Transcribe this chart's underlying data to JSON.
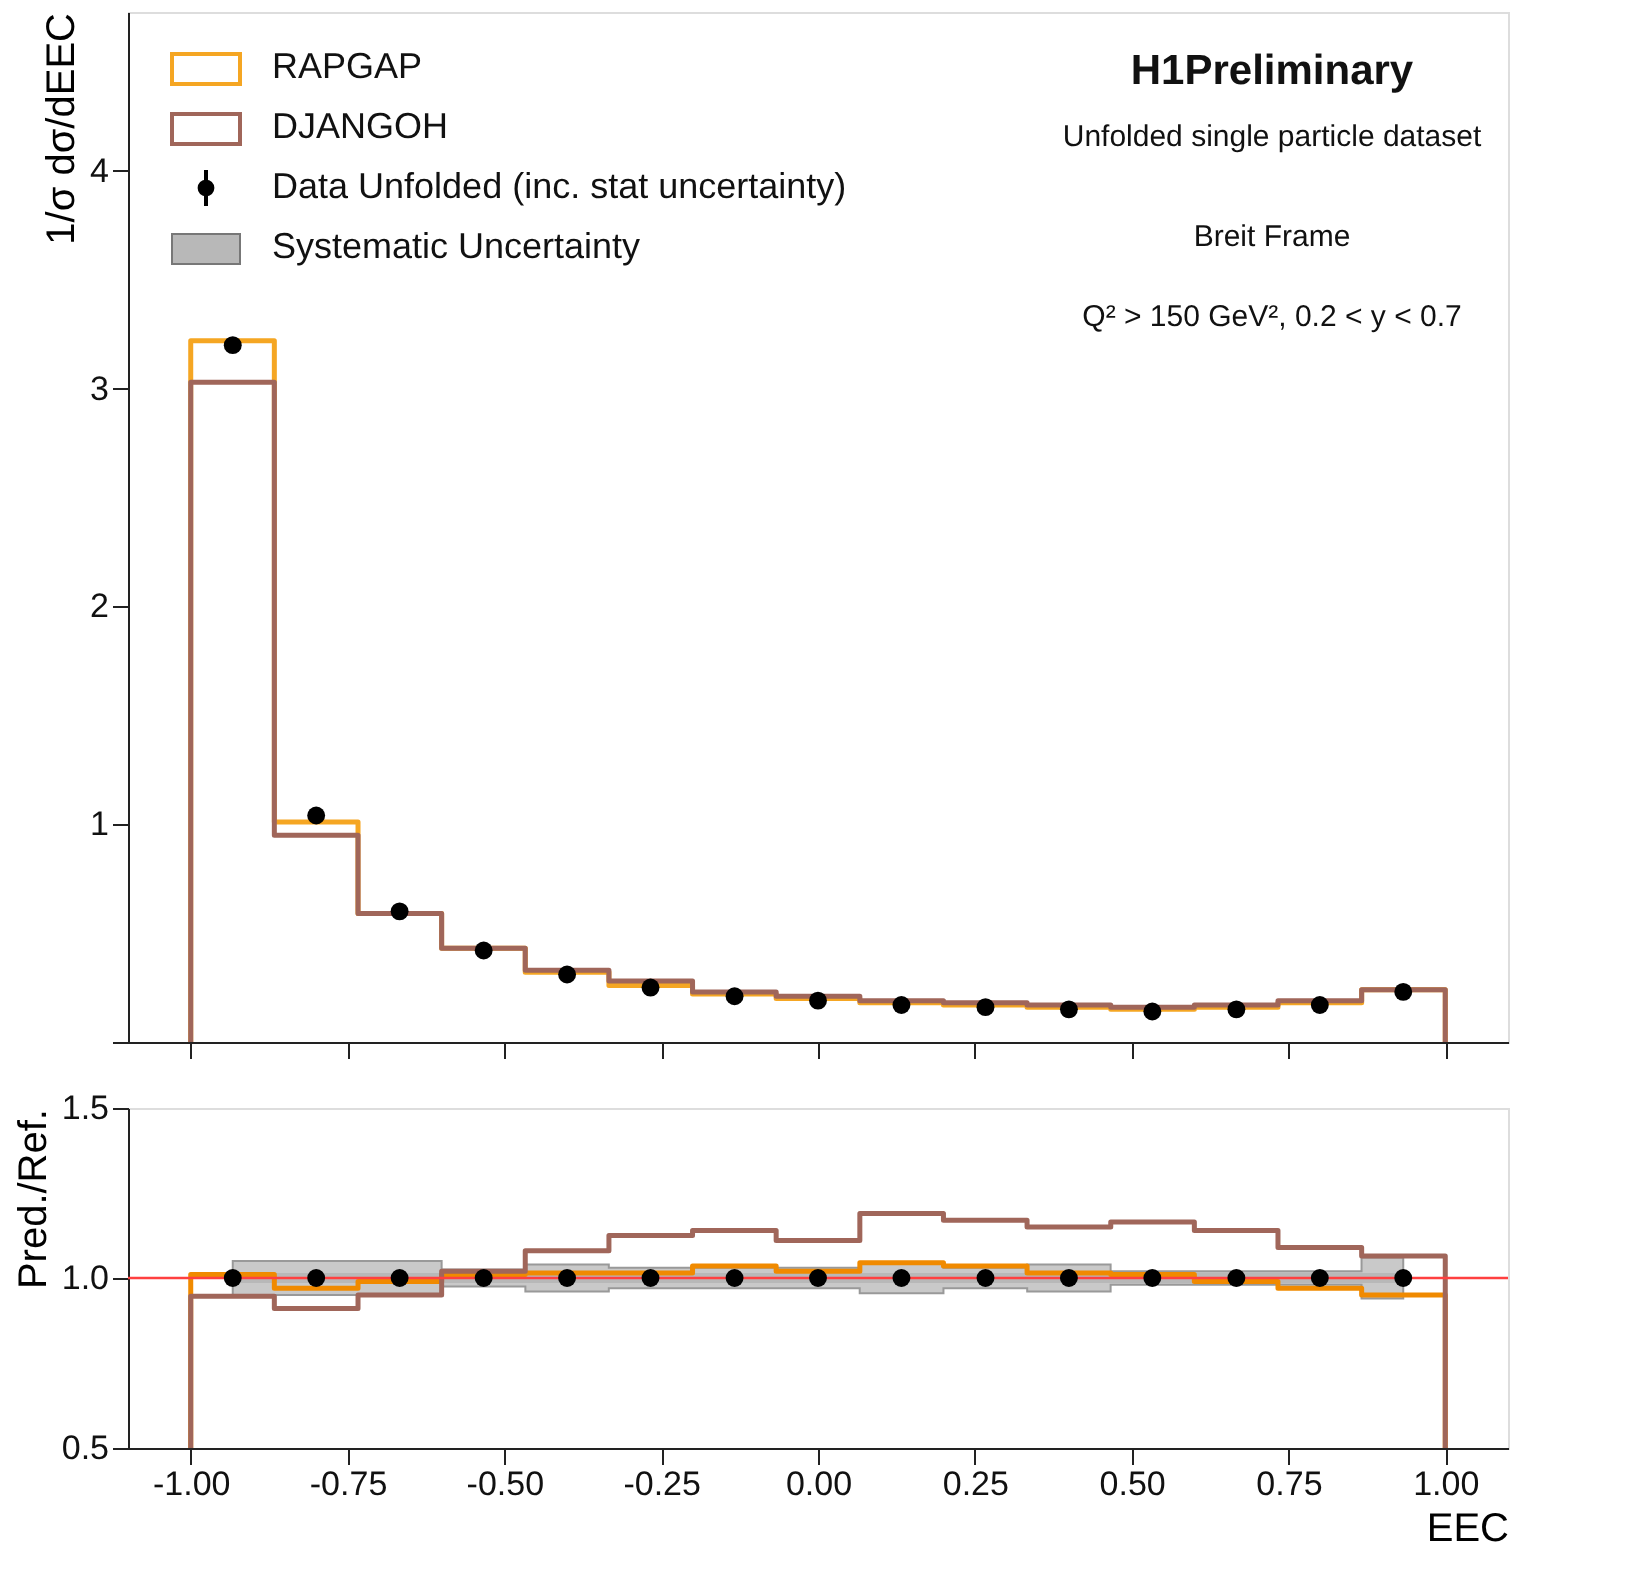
{
  "chart_data": [
    {
      "type": "histogram",
      "ylabel": "1/σ dσ/dEEC",
      "bins": [
        -1.0,
        -0.8667,
        -0.7333,
        -0.6,
        -0.4667,
        -0.3333,
        -0.2,
        -0.0667,
        0.0667,
        0.2,
        0.3333,
        0.4667,
        0.6,
        0.7333,
        0.8667,
        1.0
      ],
      "xlim": [
        -1.1,
        1.1
      ],
      "xticks": [
        {
          "value": -1,
          "label": null
        },
        {
          "value": -0.75,
          "label": null
        },
        {
          "value": -0.5,
          "label": null
        },
        {
          "value": -0.25,
          "label": null
        },
        {
          "value": 0,
          "label": null
        },
        {
          "value": 0.25,
          "label": null
        },
        {
          "value": 0.5,
          "label": null
        },
        {
          "value": 0.75,
          "label": null
        },
        {
          "value": 1,
          "label": null
        }
      ],
      "ylim": [
        0,
        4.73
      ],
      "yticks": [
        {
          "value": 0,
          "label": null
        },
        1,
        2,
        3,
        4
      ],
      "tick_labels": "y",
      "legend": "top left",
      "annotations": [
        "H1Preliminary",
        "Unfolded single particle dataset",
        "Breit Frame",
        "Q² > 150 GeV², 0.2 < y < 0.7"
      ],
      "series": [
        {
          "name": "RAPGAP",
          "color": "#f5a623",
          "values": [
            3.22,
            1.01,
            0.59,
            0.43,
            0.32,
            0.26,
            0.22,
            0.2,
            0.18,
            0.17,
            0.16,
            0.15,
            0.16,
            0.18,
            0.24
          ]
        },
        {
          "name": "DJANGOH",
          "color": "#a0665a",
          "values": [
            3.03,
            0.95,
            0.59,
            0.43,
            0.33,
            0.28,
            0.23,
            0.21,
            0.19,
            0.18,
            0.17,
            0.16,
            0.17,
            0.19,
            0.24
          ]
        },
        {
          "name": "Data Unfolded (inc. stat uncertainty)",
          "type": "scatter",
          "color": "#000000",
          "x": [
            -0.933,
            -0.8,
            -0.667,
            -0.533,
            -0.4,
            -0.267,
            -0.133,
            0,
            0.133,
            0.267,
            0.4,
            0.533,
            0.667,
            0.8,
            0.933
          ],
          "values": [
            3.2,
            1.04,
            0.6,
            0.42,
            0.31,
            0.25,
            0.21,
            0.19,
            0.17,
            0.16,
            0.15,
            0.14,
            0.15,
            0.17,
            0.23
          ]
        }
      ]
    },
    {
      "type": "histogram",
      "ylabel": "Pred./Ref.",
      "xlabel": "EEC",
      "bins": [
        -1.0,
        -0.8667,
        -0.7333,
        -0.6,
        -0.4667,
        -0.3333,
        -0.2,
        -0.0667,
        0.0667,
        0.2,
        0.3333,
        0.4667,
        0.6,
        0.7333,
        0.8667,
        1.0
      ],
      "xlim": [
        -1.1,
        1.1
      ],
      "xticks": [
        {
          "value": -1,
          "label": "-1.00"
        },
        {
          "value": -0.75,
          "label": "-0.75"
        },
        {
          "value": -0.5,
          "label": "-0.50"
        },
        {
          "value": -0.25,
          "label": "-0.25"
        },
        {
          "value": 0,
          "label": "0.00"
        },
        {
          "value": 0.25,
          "label": "0.25"
        },
        {
          "value": 0.5,
          "label": "0.50"
        },
        {
          "value": 0.75,
          "label": "0.75"
        },
        {
          "value": 1,
          "label": "1.00"
        }
      ],
      "ylim": [
        0.5,
        1.5
      ],
      "yticks": [
        {
          "value": 0.5,
          "label": "0.5"
        },
        {
          "value": 1,
          "label": "1.0"
        },
        {
          "value": 1.5,
          "label": "1.5"
        }
      ],
      "ref_lines": [
        {
          "axis": "y",
          "value": 1,
          "color": "#ff4040"
        }
      ],
      "series": [
        {
          "color": "#f08a00",
          "values": [
            1.01,
            0.97,
            0.99,
            1.01,
            1.015,
            1.015,
            1.035,
            1.02,
            1.045,
            1.035,
            1.015,
            1.01,
            0.99,
            0.97,
            0.95
          ]
        },
        {
          "color": "#a0665a",
          "values": [
            0.946,
            0.91,
            0.95,
            1.02,
            1.08,
            1.125,
            1.14,
            1.11,
            1.19,
            1.17,
            1.15,
            1.165,
            1.14,
            1.09,
            1.065
          ]
        },
        {
          "type": "scatter",
          "color": "#000000",
          "x": [
            -0.933,
            -0.8,
            -0.667,
            -0.533,
            -0.4,
            -0.267,
            -0.133,
            0,
            0.133,
            0.267,
            0.4,
            0.533,
            0.667,
            0.8,
            0.933
          ],
          "values": [
            1,
            1,
            1,
            1,
            1,
            1,
            1,
            1,
            1,
            1,
            1,
            1,
            1,
            1,
            1
          ]
        },
        {
          "name": "Systematic Uncertainty",
          "type": "line",
          "color": "#b8b8b8",
          "x": [
            -0.933,
            -0.8,
            -0.667,
            -0.533,
            -0.4,
            -0.267,
            -0.133,
            0,
            0.133,
            0.267,
            0.4,
            0.533,
            0.667,
            0.8,
            0.933
          ],
          "values": [
            1,
            1,
            1,
            1,
            1,
            1,
            1,
            1,
            1,
            1,
            1,
            1,
            1,
            1,
            1
          ],
          "lower": [
            0.95,
            0.95,
            0.95,
            0.975,
            0.96,
            0.97,
            0.97,
            0.97,
            0.955,
            0.97,
            0.96,
            0.98,
            0.98,
            0.98,
            0.94
          ],
          "upper": [
            1.05,
            1.05,
            1.05,
            1.025,
            1.04,
            1.03,
            1.03,
            1.03,
            1.045,
            1.03,
            1.04,
            1.02,
            1.02,
            1.02,
            1.06
          ]
        }
      ]
    }
  ]
}
